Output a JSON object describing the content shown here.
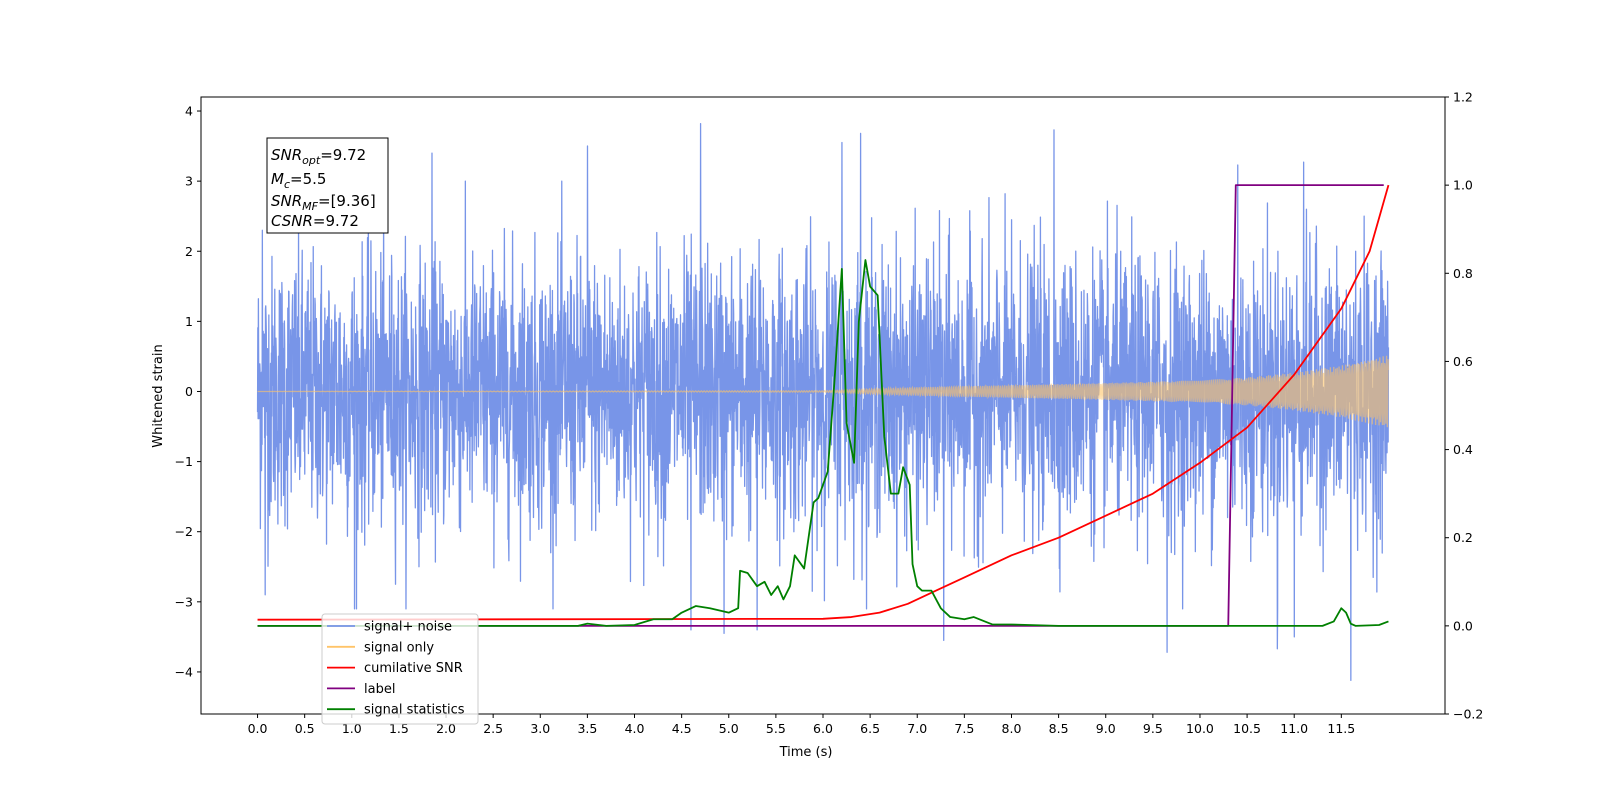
{
  "chart_data": {
    "type": "line",
    "xlabel": "Time (s)",
    "ylabel": "Whitened strain",
    "xlim": [
      -0.6,
      12.6
    ],
    "ylim": [
      -4.6,
      4.2
    ],
    "y2lim": [
      -0.2,
      1.2
    ],
    "x_ticks": [
      "0.0",
      "0.5",
      "1.0",
      "1.5",
      "2.0",
      "2.5",
      "3.0",
      "3.5",
      "4.0",
      "4.5",
      "5.0",
      "5.5",
      "6.0",
      "6.5",
      "7.0",
      "7.5",
      "8.0",
      "8.5",
      "9.0",
      "9.5",
      "10.0",
      "10.5",
      "11.0",
      "11.5"
    ],
    "y_ticks": [
      "4",
      "3",
      "2",
      "1",
      "0",
      "−1",
      "−2",
      "−3",
      "−4"
    ],
    "y2_ticks": [
      "1.2",
      "1.0",
      "0.8",
      "0.6",
      "0.4",
      "0.2",
      "0.0",
      "−0.2"
    ],
    "annotation": {
      "snr_opt": {
        "base": "SNR",
        "sub": "opt",
        "value": "=9.72"
      },
      "mc": {
        "base": "M",
        "sub": "c",
        "value": "=5.5"
      },
      "snr_mf": {
        "base": "SNR",
        "sub": "MF",
        "value": "=[9.36]"
      },
      "csnr": {
        "base": "CSNR",
        "value": "=9.72"
      }
    },
    "legend": {
      "placement": "lower-left",
      "items": [
        {
          "label": "signal+ noise",
          "color": "#7895e8"
        },
        {
          "label": "signal only",
          "color": "#ffc468"
        },
        {
          "label": "cumilative SNR",
          "color": "#ff0000"
        },
        {
          "label": "label",
          "color": "#800080"
        },
        {
          "label": "signal statistics",
          "color": "#008000"
        }
      ]
    },
    "series": [
      {
        "name": "signal+ noise",
        "axis": "left",
        "color": "#7895e8",
        "noise_envelope": {
          "x_range": [
            0.0,
            12.0
          ],
          "typical_amplitude": 1.3,
          "max": 3.82,
          "min": -4.12
        },
        "peaks": [
          [
            0.05,
            2.3
          ],
          [
            0.08,
            -2.9
          ],
          [
            1.03,
            -3.1
          ],
          [
            1.85,
            3.4
          ],
          [
            3.5,
            3.5
          ],
          [
            4.7,
            3.82
          ],
          [
            4.6,
            -3.4
          ],
          [
            4.95,
            -3.45
          ],
          [
            5.3,
            -3.4
          ],
          [
            6.4,
            3.68
          ],
          [
            6.2,
            3.55
          ],
          [
            8.45,
            3.73
          ],
          [
            7.28,
            -3.55
          ],
          [
            9.65,
            -3.72
          ],
          [
            10.82,
            -3.67
          ],
          [
            11.0,
            -3.5
          ],
          [
            11.6,
            -4.12
          ],
          [
            11.1,
            3.27
          ],
          [
            10.4,
            3.23
          ]
        ]
      },
      {
        "name": "signal only",
        "axis": "left",
        "color": "#ffc468",
        "amplitude_envelope": [
          [
            0.0,
            0.0
          ],
          [
            6.0,
            0.01
          ],
          [
            7.0,
            0.06
          ],
          [
            8.0,
            0.09
          ],
          [
            9.0,
            0.12
          ],
          [
            10.0,
            0.16
          ],
          [
            10.5,
            0.2
          ],
          [
            11.0,
            0.27
          ],
          [
            11.5,
            0.37
          ],
          [
            12.0,
            0.52
          ]
        ]
      },
      {
        "name": "cumilative SNR",
        "axis": "right",
        "color": "#ff0000",
        "points": [
          [
            0.0,
            0.014
          ],
          [
            6.0,
            0.016
          ],
          [
            6.3,
            0.02
          ],
          [
            6.6,
            0.03
          ],
          [
            6.9,
            0.05
          ],
          [
            7.2,
            0.08
          ],
          [
            7.5,
            0.11
          ],
          [
            8.0,
            0.16
          ],
          [
            8.5,
            0.2
          ],
          [
            9.0,
            0.25
          ],
          [
            9.5,
            0.3
          ],
          [
            10.0,
            0.37
          ],
          [
            10.5,
            0.45
          ],
          [
            11.0,
            0.57
          ],
          [
            11.5,
            0.72
          ],
          [
            11.8,
            0.85
          ],
          [
            12.0,
            1.0
          ]
        ]
      },
      {
        "name": "label",
        "axis": "right",
        "color": "#800080",
        "points": [
          [
            0.0,
            0.0
          ],
          [
            10.3,
            0.0
          ],
          [
            10.38,
            1.0
          ],
          [
            11.95,
            1.0
          ]
        ]
      },
      {
        "name": "signal statistics",
        "axis": "right",
        "color": "#008000",
        "points": [
          [
            0.0,
            0.0
          ],
          [
            3.4,
            0.0
          ],
          [
            3.5,
            0.005
          ],
          [
            3.7,
            0.0
          ],
          [
            4.0,
            0.002
          ],
          [
            4.2,
            0.015
          ],
          [
            4.4,
            0.015
          ],
          [
            4.5,
            0.03
          ],
          [
            4.65,
            0.045
          ],
          [
            4.8,
            0.04
          ],
          [
            5.0,
            0.03
          ],
          [
            5.1,
            0.04
          ],
          [
            5.12,
            0.125
          ],
          [
            5.2,
            0.12
          ],
          [
            5.3,
            0.09
          ],
          [
            5.38,
            0.1
          ],
          [
            5.45,
            0.07
          ],
          [
            5.52,
            0.09
          ],
          [
            5.58,
            0.06
          ],
          [
            5.65,
            0.09
          ],
          [
            5.7,
            0.16
          ],
          [
            5.8,
            0.13
          ],
          [
            5.9,
            0.28
          ],
          [
            5.95,
            0.29
          ],
          [
            6.05,
            0.35
          ],
          [
            6.12,
            0.55
          ],
          [
            6.2,
            0.81
          ],
          [
            6.25,
            0.46
          ],
          [
            6.33,
            0.37
          ],
          [
            6.38,
            0.69
          ],
          [
            6.45,
            0.83
          ],
          [
            6.5,
            0.77
          ],
          [
            6.58,
            0.75
          ],
          [
            6.65,
            0.43
          ],
          [
            6.72,
            0.3
          ],
          [
            6.8,
            0.3
          ],
          [
            6.85,
            0.36
          ],
          [
            6.92,
            0.32
          ],
          [
            6.95,
            0.14
          ],
          [
            7.0,
            0.09
          ],
          [
            7.05,
            0.08
          ],
          [
            7.15,
            0.08
          ],
          [
            7.25,
            0.04
          ],
          [
            7.35,
            0.02
          ],
          [
            7.5,
            0.015
          ],
          [
            7.6,
            0.02
          ],
          [
            7.8,
            0.003
          ],
          [
            8.0,
            0.003
          ],
          [
            8.5,
            0.0
          ],
          [
            11.3,
            0.0
          ],
          [
            11.42,
            0.01
          ],
          [
            11.5,
            0.04
          ],
          [
            11.55,
            0.03
          ],
          [
            11.6,
            0.005
          ],
          [
            11.65,
            0.0
          ],
          [
            11.9,
            0.002
          ],
          [
            12.0,
            0.01
          ]
        ]
      }
    ]
  }
}
